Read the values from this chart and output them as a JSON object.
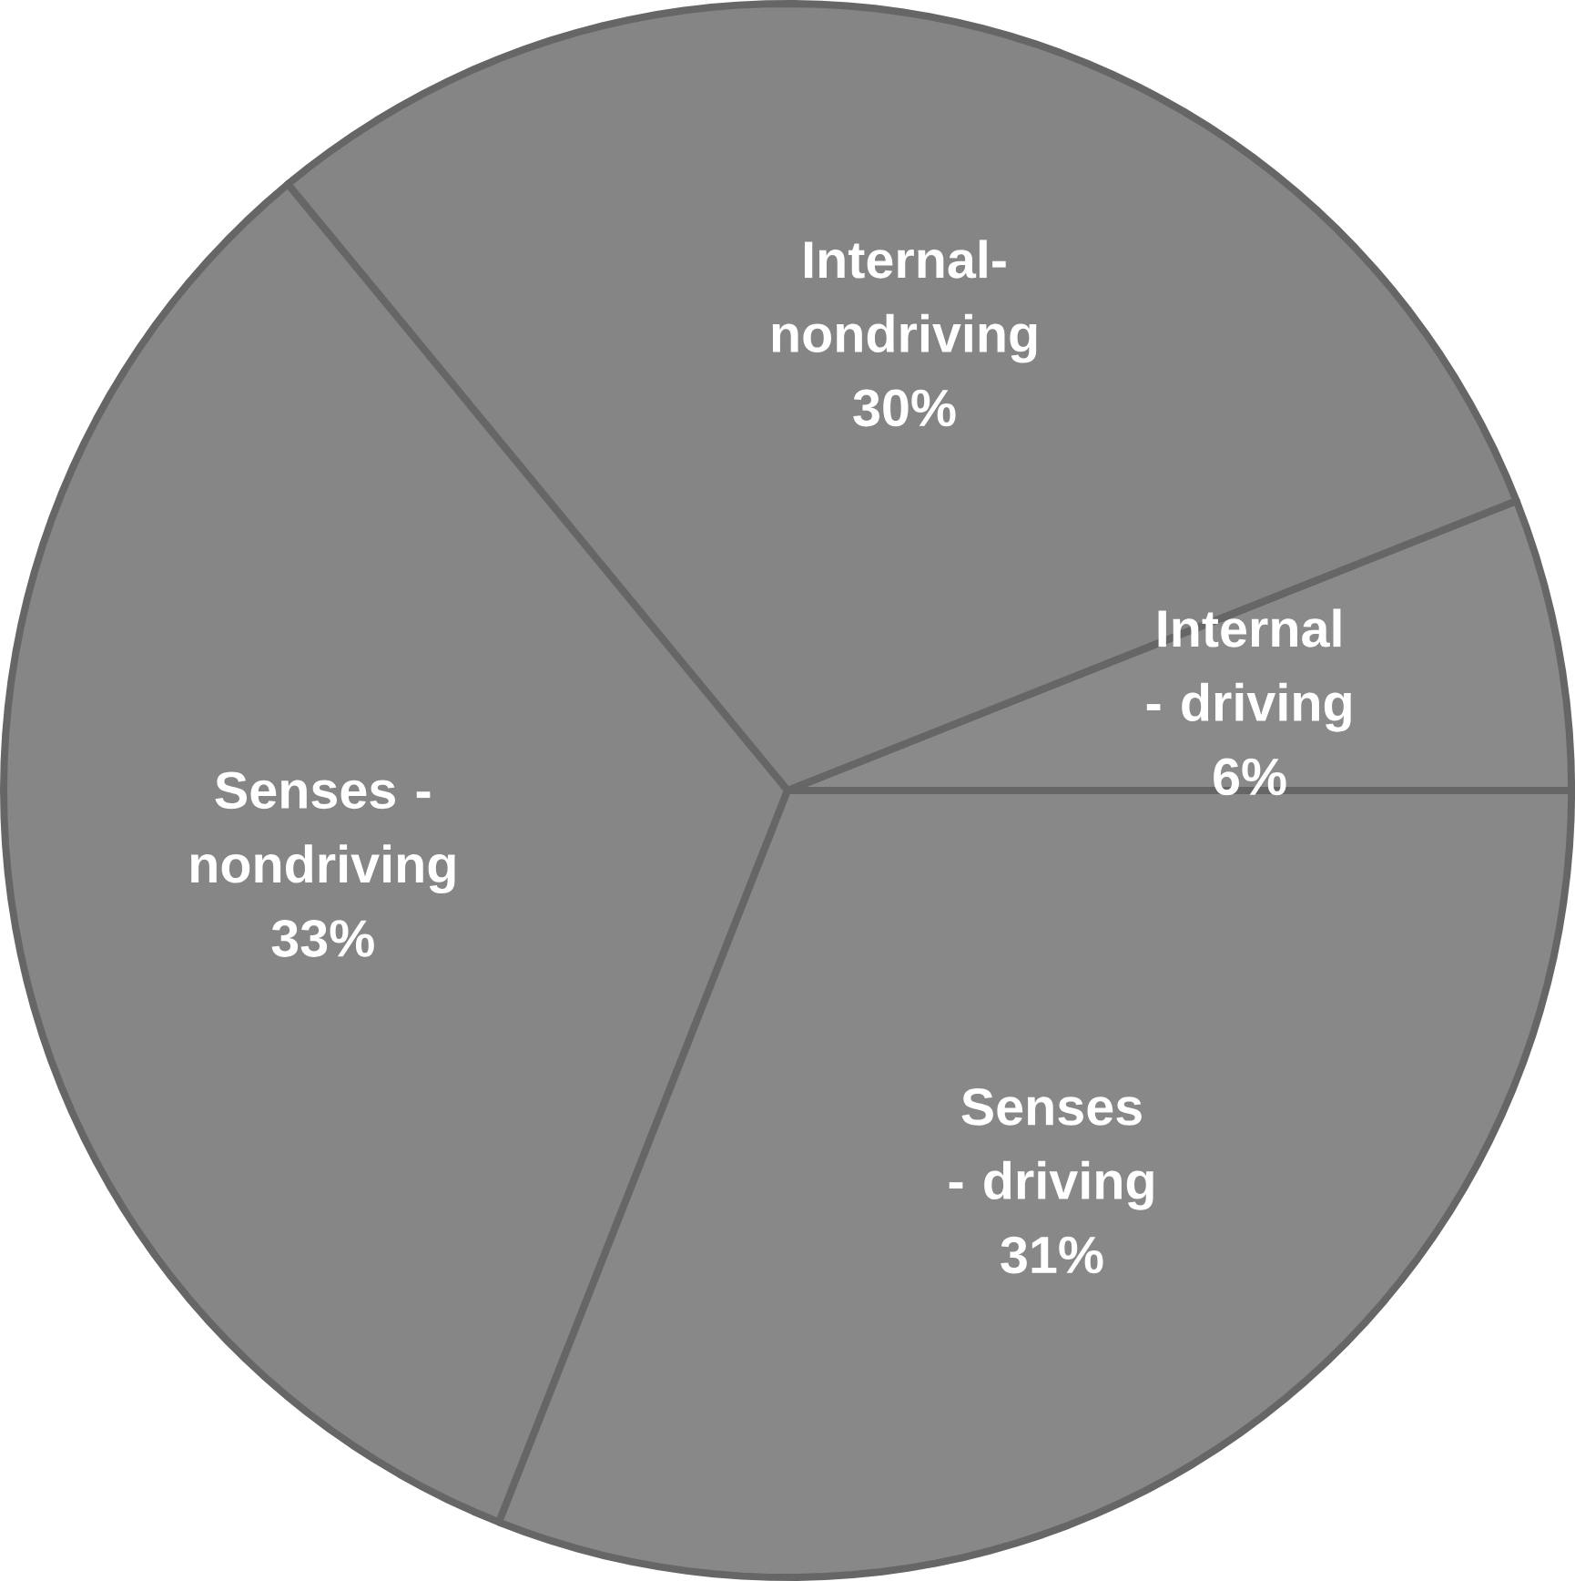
{
  "chart_data": {
    "type": "pie",
    "categories": [
      "Internal - driving",
      "Internal-nondriving",
      "Senses - nondriving",
      "Senses - driving"
    ],
    "values": [
      6,
      30,
      33,
      31
    ],
    "value_labels": [
      "6%",
      "30%",
      "33%",
      "31%"
    ],
    "colors": [
      "#8a8a8a",
      "#858585",
      "#868686",
      "#888888"
    ]
  }
}
